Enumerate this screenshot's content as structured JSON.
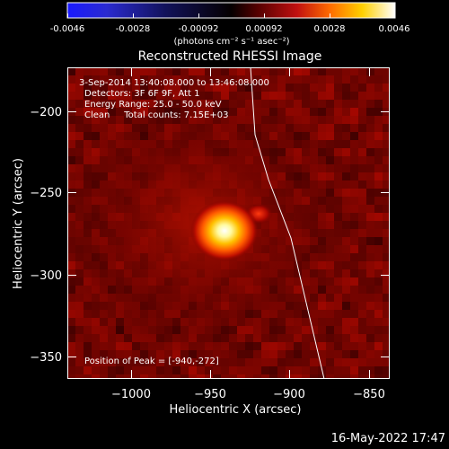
{
  "colorbar": {
    "ticks": [
      "-0.0046",
      "-0.0028",
      "-0.00092",
      "0.00092",
      "0.0028",
      "0.0046"
    ],
    "unit_label": "(photons cm⁻² s⁻¹ asec⁻²)",
    "range": [
      -0.0046,
      0.0046
    ],
    "colormap": "blue-black-red-yellow-white"
  },
  "title": "Reconstructed RHESSI Image",
  "annotations": {
    "time_range": "3-Sep-2014 13:40:08.000 to 13:46:08.000",
    "detectors": "Detectors: 3F 6F 9F, Att 1",
    "energy_range": "Energy Range: 25.0 - 50.0 keV",
    "method_counts": "Clean     Total counts: 7.15E+03",
    "peak_position": "Position of Peak = [-940,-272]"
  },
  "footer": {
    "timestamp": "16-May-2022 17:47"
  },
  "chart_data": {
    "type": "heatmap",
    "title": "Reconstructed RHESSI Image",
    "xlabel": "Heliocentric X (arcsec)",
    "ylabel": "Heliocentric Y (arcsec)",
    "xlim": [
      -1038,
      -844
    ],
    "ylim": [
      -370,
      -176
    ],
    "xticks": [
      -1000,
      -950,
      -900,
      -850
    ],
    "yticks": [
      -200,
      -250,
      -300,
      -350
    ],
    "xtick_labels": [
      "−1000",
      "−950",
      "−900",
      "−850"
    ],
    "ytick_labels": [
      "−200",
      "−250",
      "−300",
      "−350"
    ],
    "peak": {
      "x": -940,
      "y": -272
    },
    "solar_limb": [
      [
        -922,
        -176
      ],
      [
        -913,
        -250
      ],
      [
        -898,
        -300
      ],
      [
        -870,
        -370
      ]
    ],
    "secondary_source": {
      "x": -917,
      "y": -261
    },
    "grid": false
  }
}
